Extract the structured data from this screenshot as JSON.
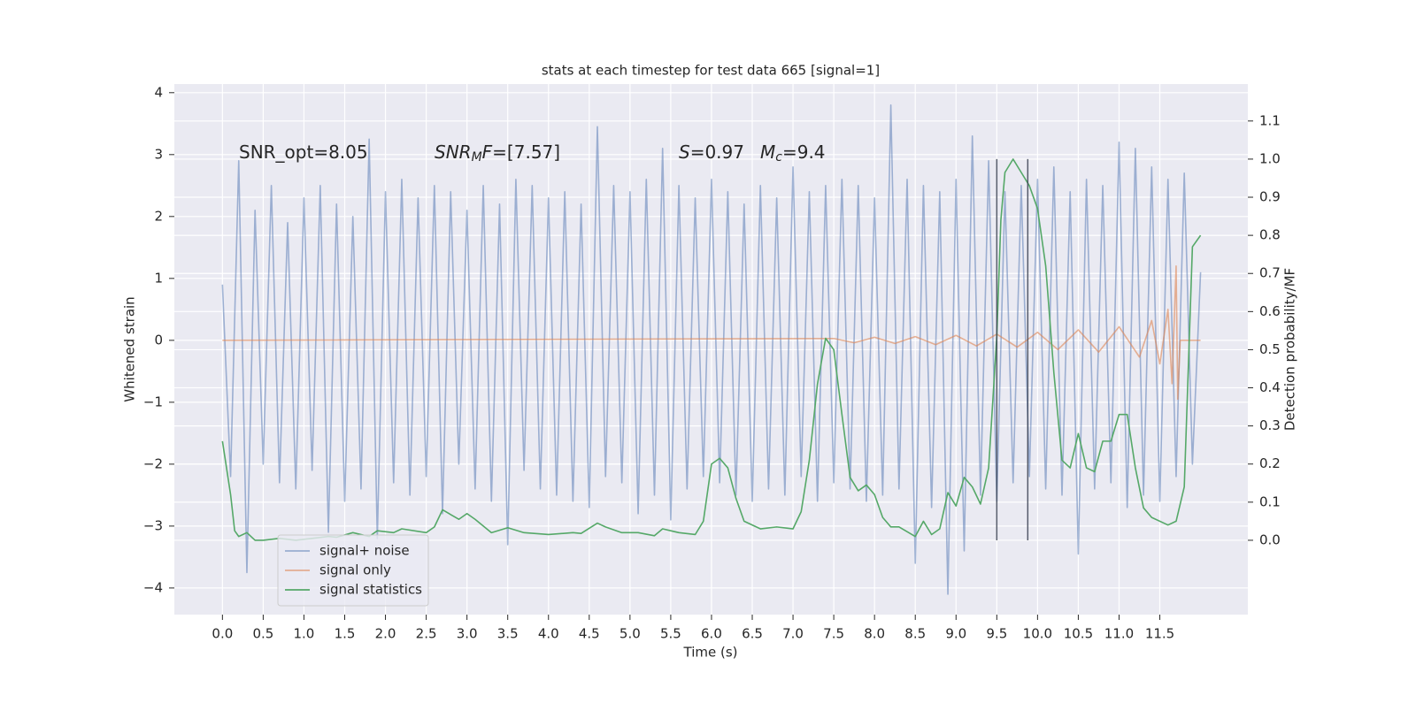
{
  "chart_data": {
    "type": "line",
    "title": "stats at each timestep for test data 665 [signal=1]",
    "xlabel": "Time (s)",
    "ylabel": "Whitened strain",
    "y2label": "Detection probability/MF",
    "annotations": [
      [
        "SNR_opt=8.05"
      ],
      [
        "SNR",
        "M",
        "F",
        "=[7.57]"
      ],
      [
        "S",
        "=0.97"
      ],
      [
        "M",
        "c",
        "=9.4"
      ]
    ],
    "xlim": [
      -0.59,
      12.58
    ],
    "ylim": [
      -4.43,
      4.14
    ],
    "y2lim": [
      -0.195,
      1.197
    ],
    "xticks": [
      {
        "value": 0,
        "label": "0.0"
      },
      0.5,
      {
        "value": 1,
        "label": "1.0"
      },
      1.5,
      {
        "value": 2,
        "label": "2.0"
      },
      2.5,
      {
        "value": 3,
        "label": "3.0"
      },
      3.5,
      {
        "value": 4,
        "label": "4.0"
      },
      4.5,
      {
        "value": 5,
        "label": "5.0"
      },
      5.5,
      {
        "value": 6,
        "label": "6.0"
      },
      6.5,
      {
        "value": 7,
        "label": "7.0"
      },
      7.5,
      {
        "value": 8,
        "label": "8.0"
      },
      8.5,
      {
        "value": 9,
        "label": "9.0"
      },
      9.5,
      {
        "value": 10,
        "label": "10.0"
      },
      10.5,
      {
        "value": 11,
        "label": "11.0"
      },
      11.5
    ],
    "yticks": [
      {
        "value": -4,
        "label": "−4"
      },
      {
        "value": -3,
        "label": "−3"
      },
      {
        "value": -2,
        "label": "−2"
      },
      {
        "value": -1,
        "label": "−1"
      },
      0,
      1,
      2,
      3,
      4
    ],
    "y2ticks": [
      {
        "value": 0,
        "label": "0.0"
      },
      0.1,
      0.2,
      0.3,
      0.4,
      0.5,
      0.6,
      0.7,
      0.8,
      0.9,
      {
        "value": 1,
        "label": "1.0"
      },
      1.1
    ],
    "grid": true,
    "legend": "lower left",
    "series": [
      {
        "name": "signal+ noise",
        "color": "#4c72b0",
        "opacity": 0.5,
        "axis": "y",
        "x": [
          0,
          0.1,
          0.2,
          0.3,
          0.4,
          0.5,
          0.6,
          0.7,
          0.8,
          0.9,
          1,
          1.1,
          1.2,
          1.3,
          1.4,
          1.5,
          1.6,
          1.7,
          1.8,
          1.9,
          2,
          2.1,
          2.2,
          2.3,
          2.4,
          2.5,
          2.6,
          2.7,
          2.8,
          2.9,
          3,
          3.1,
          3.2,
          3.3,
          3.4,
          3.5,
          3.6,
          3.7,
          3.8,
          3.9,
          4,
          4.1,
          4.2,
          4.3,
          4.4,
          4.5,
          4.6,
          4.7,
          4.8,
          4.9,
          5,
          5.1,
          5.2,
          5.3,
          5.4,
          5.5,
          5.6,
          5.7,
          5.8,
          5.9,
          6,
          6.1,
          6.2,
          6.3,
          6.4,
          6.5,
          6.6,
          6.7,
          6.8,
          6.9,
          7,
          7.1,
          7.2,
          7.3,
          7.4,
          7.5,
          7.6,
          7.7,
          7.8,
          7.9,
          8,
          8.1,
          8.2,
          8.3,
          8.4,
          8.5,
          8.6,
          8.7,
          8.8,
          8.9,
          9,
          9.1,
          9.2,
          9.3,
          9.4,
          9.5,
          9.6,
          9.7,
          9.8,
          9.9,
          10,
          10.1,
          10.2,
          10.3,
          10.4,
          10.5,
          10.6,
          10.7,
          10.8,
          10.9,
          11,
          11.1,
          11.2,
          11.3,
          11.4,
          11.5,
          11.6,
          11.7,
          11.8,
          11.9,
          12
        ],
        "values": [
          0.9,
          -2.2,
          2.9,
          -3.75,
          2.1,
          -2.0,
          2.5,
          -2.3,
          1.9,
          -2.4,
          2.3,
          -2.1,
          2.5,
          -3.1,
          2.2,
          -2.6,
          2.0,
          -2.4,
          3.25,
          -3.2,
          2.4,
          -2.3,
          2.6,
          -2.5,
          2.3,
          -2.2,
          2.5,
          -2.8,
          2.4,
          -2.0,
          2.1,
          -2.4,
          2.5,
          -2.6,
          2.2,
          -3.3,
          2.6,
          -2.1,
          2.5,
          -2.4,
          2.3,
          -2.5,
          2.4,
          -2.6,
          2.2,
          -2.7,
          3.45,
          -2.2,
          2.5,
          -2.3,
          2.4,
          -2.8,
          2.6,
          -2.5,
          3.1,
          -2.9,
          2.5,
          -2.4,
          2.3,
          -2.2,
          2.6,
          -2.3,
          2.4,
          -2.5,
          2.2,
          -2.6,
          2.5,
          -2.4,
          2.3,
          -2.5,
          2.8,
          -2.2,
          2.4,
          -2.6,
          2.5,
          -2.3,
          2.6,
          -2.4,
          2.5,
          -2.6,
          2.3,
          -2.5,
          3.8,
          -2.4,
          2.6,
          -3.6,
          2.5,
          -2.7,
          2.4,
          -4.1,
          2.6,
          -3.4,
          3.3,
          -2.5,
          2.9,
          -2.6,
          2.4,
          -2.3,
          2.5,
          -2.2,
          2.6,
          -2.4,
          2.8,
          -2.5,
          2.4,
          -3.45,
          2.6,
          -2.4,
          2.5,
          -2.3,
          3.2,
          -2.7,
          3.1,
          -2.5,
          2.8,
          -2.6,
          2.6,
          -2.2,
          2.7,
          -2.0,
          1.1
        ]
      },
      {
        "name": "signal only",
        "color": "#dd8452",
        "opacity": 0.6,
        "axis": "y",
        "x": [
          0,
          7.5,
          7.75,
          8.0,
          8.25,
          8.5,
          8.75,
          9.0,
          9.25,
          9.5,
          9.75,
          10.0,
          10.25,
          10.5,
          10.75,
          11.0,
          11.25,
          11.4,
          11.5,
          11.6,
          11.65,
          11.7,
          11.72,
          11.75,
          12.0
        ],
        "values": [
          0,
          0.03,
          -0.04,
          0.05,
          -0.05,
          0.06,
          -0.07,
          0.08,
          -0.09,
          0.1,
          -0.11,
          0.13,
          -0.15,
          0.17,
          -0.19,
          0.22,
          -0.27,
          0.32,
          -0.38,
          0.5,
          -0.7,
          1.2,
          -0.95,
          0,
          0
        ]
      },
      {
        "name": "signal statistics",
        "color": "#55a868",
        "opacity": 1,
        "axis": "y2",
        "x": [
          0,
          0.1,
          0.15,
          0.2,
          0.3,
          0.4,
          0.5,
          0.7,
          0.9,
          1.1,
          1.3,
          1.4,
          1.6,
          1.8,
          1.9,
          2.1,
          2.2,
          2.5,
          2.6,
          2.7,
          2.9,
          3.0,
          3.1,
          3.3,
          3.5,
          3.7,
          4.0,
          4.3,
          4.4,
          4.6,
          4.7,
          4.9,
          5.1,
          5.3,
          5.4,
          5.6,
          5.8,
          5.9,
          6.0,
          6.1,
          6.2,
          6.3,
          6.4,
          6.6,
          6.8,
          7.0,
          7.1,
          7.2,
          7.3,
          7.4,
          7.5,
          7.6,
          7.7,
          7.8,
          7.9,
          8.0,
          8.1,
          8.2,
          8.3,
          8.5,
          8.6,
          8.7,
          8.8,
          8.9,
          9.0,
          9.1,
          9.2,
          9.3,
          9.4,
          9.5,
          9.55,
          9.6,
          9.7,
          9.8,
          9.9,
          10.0,
          10.1,
          10.2,
          10.3,
          10.4,
          10.5,
          10.6,
          10.7,
          10.8,
          10.9,
          11.0,
          11.1,
          11.2,
          11.3,
          11.4,
          11.6,
          11.7,
          11.8,
          11.9,
          12.0
        ],
        "values": [
          0.26,
          0.12,
          0.025,
          0.01,
          0.02,
          0,
          0,
          0.005,
          0,
          0.005,
          0.01,
          0.008,
          0.02,
          0.01,
          0.025,
          0.02,
          0.03,
          0.02,
          0.035,
          0.08,
          0.055,
          0.07,
          0.055,
          0.02,
          0.033,
          0.02,
          0.015,
          0.02,
          0.018,
          0.045,
          0.035,
          0.02,
          0.02,
          0.012,
          0.03,
          0.02,
          0.015,
          0.05,
          0.2,
          0.215,
          0.19,
          0.11,
          0.05,
          0.03,
          0.035,
          0.03,
          0.075,
          0.21,
          0.41,
          0.53,
          0.5,
          0.33,
          0.165,
          0.13,
          0.145,
          0.12,
          0.06,
          0.035,
          0.035,
          0.01,
          0.05,
          0.015,
          0.03,
          0.125,
          0.09,
          0.165,
          0.14,
          0.095,
          0.19,
          0.535,
          0.84,
          0.965,
          1.0,
          0.965,
          0.93,
          0.87,
          0.72,
          0.44,
          0.21,
          0.19,
          0.28,
          0.19,
          0.18,
          0.26,
          0.26,
          0.33,
          0.33,
          0.19,
          0.085,
          0.06,
          0.04,
          0.05,
          0.14,
          0.77,
          0.8
        ]
      }
    ],
    "vlines": [
      {
        "x": 9.5,
        "ymin": 0,
        "ymax": 1,
        "axis": "y2",
        "color": "#3b4252"
      },
      {
        "x": 9.88,
        "ymin": 0,
        "ymax": 1,
        "axis": "y2",
        "color": "#3b4252"
      }
    ]
  }
}
